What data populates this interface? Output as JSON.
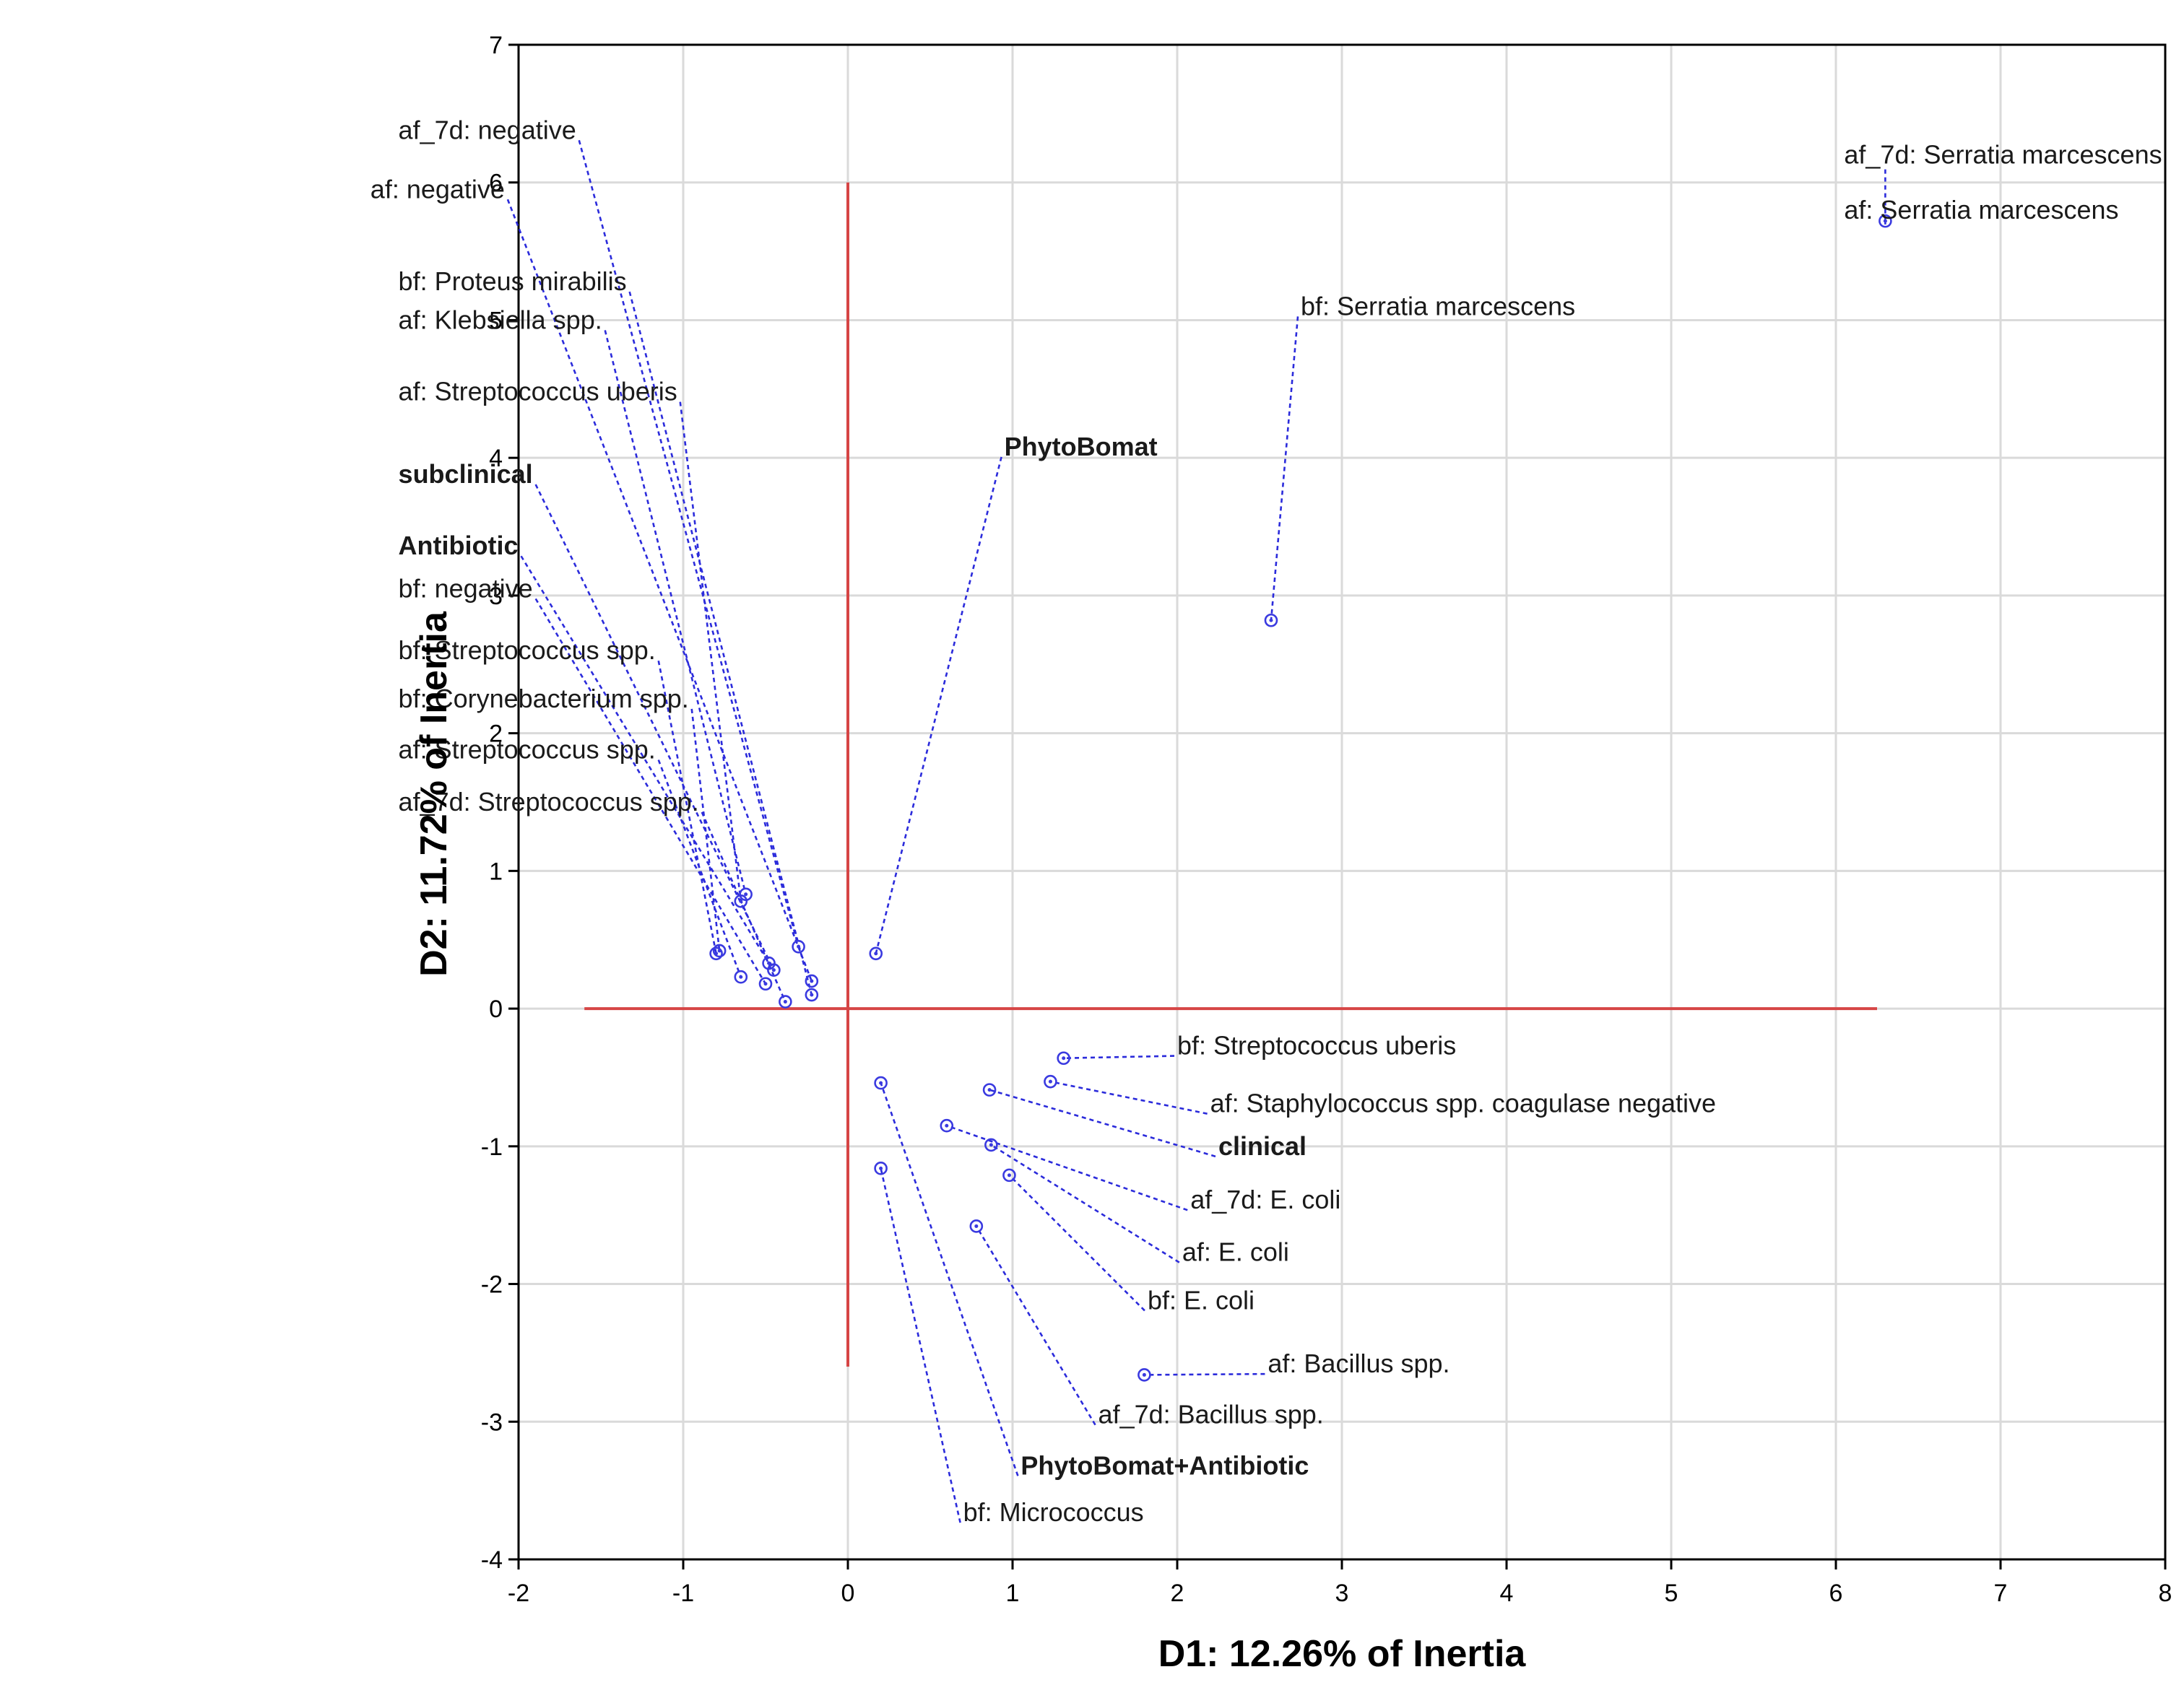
{
  "chart_data": {
    "type": "scatter",
    "title": "",
    "xlabel": "D1: 12.26% of Inertia",
    "ylabel": "D2: 11.72% of Inertia",
    "xlim": [
      -2,
      8
    ],
    "ylim": [
      -4,
      7
    ],
    "x_ticks": [
      -2,
      -1,
      0,
      1,
      2,
      3,
      4,
      5,
      6,
      7,
      8
    ],
    "y_ticks": [
      -4,
      -3,
      -2,
      -1,
      0,
      1,
      2,
      3,
      4,
      5,
      6,
      7
    ],
    "grid": true,
    "reference_lines": {
      "horizontal": {
        "y": 0,
        "x_from": -1.6,
        "x_to": 6.25,
        "color": "#d64545"
      },
      "vertical": {
        "x": 0,
        "y_from": -2.6,
        "y_to": 6.0,
        "color": "#d64545"
      }
    },
    "colors": {
      "category": "#1a1a1a",
      "status": "#1a1ae6",
      "treatment": "#8b1a1a",
      "point": "#3a3ae0"
    },
    "points": [
      {
        "label": "af_7d: negative",
        "group": "category",
        "x": -0.3,
        "y": 0.45,
        "label_x": -2.73,
        "label_y": 6.38
      },
      {
        "label": "af: negative",
        "group": "category",
        "x": -0.22,
        "y": 0.2,
        "label_x": -2.9,
        "label_y": 5.95
      },
      {
        "label": "bf: Proteus mirabilis",
        "group": "category",
        "x": -0.22,
        "y": 0.1,
        "label_x": -2.73,
        "label_y": 5.28
      },
      {
        "label": "af: Klebsiella spp.",
        "group": "category",
        "x": -0.62,
        "y": 0.83,
        "label_x": -2.73,
        "label_y": 5.0
      },
      {
        "label": "af: Streptococcus uberis",
        "group": "category",
        "x": -0.65,
        "y": 0.78,
        "label_x": -2.73,
        "label_y": 4.48
      },
      {
        "label": "subclinical",
        "group": "status",
        "x": -0.45,
        "y": 0.28,
        "label_x": -2.73,
        "label_y": 3.88
      },
      {
        "label": "Antibiotic",
        "group": "treatment",
        "x": -0.48,
        "y": 0.33,
        "label_x": -2.73,
        "label_y": 3.36
      },
      {
        "label": "bf: negative",
        "group": "category",
        "x": -0.5,
        "y": 0.18,
        "label_x": -2.73,
        "label_y": 3.05
      },
      {
        "label": "bf: Streptococcus spp.",
        "group": "category",
        "x": -0.8,
        "y": 0.4,
        "label_x": -2.73,
        "label_y": 2.6
      },
      {
        "label": "bf: Corynebacterium spp.",
        "group": "category",
        "x": -0.78,
        "y": 0.42,
        "label_x": -2.73,
        "label_y": 2.25
      },
      {
        "label": "af: Streptococcus spp.",
        "group": "category",
        "x": -0.65,
        "y": 0.23,
        "label_x": -2.73,
        "label_y": 1.88
      },
      {
        "label": "af_7d: Streptococcus spp.",
        "group": "category",
        "x": -0.38,
        "y": 0.05,
        "label_x": -2.73,
        "label_y": 1.5
      },
      {
        "label": "PhytoBomat",
        "group": "treatment",
        "x": 0.17,
        "y": 0.4,
        "label_x": 0.95,
        "label_y": 4.08
      },
      {
        "label": "bf: Serratia marcescens",
        "group": "category",
        "x": 2.57,
        "y": 2.82,
        "label_x": 2.75,
        "label_y": 5.1
      },
      {
        "label": "af_7d: Serratia marcescens",
        "group": "category",
        "x": 6.3,
        "y": 5.72,
        "label_x": 6.05,
        "label_y": 6.2
      },
      {
        "label": "af: Serratia marcescens",
        "group": "category",
        "x": 6.3,
        "y": 5.72,
        "label_x": 6.05,
        "label_y": 5.8
      },
      {
        "label": "bf: Streptococcus uberis",
        "group": "category",
        "x": 1.31,
        "y": -0.36,
        "label_x": 2.0,
        "label_y": -0.27
      },
      {
        "label": "af: Staphylococcus spp. coagulase negative",
        "group": "category",
        "x": 1.23,
        "y": -0.53,
        "label_x": 2.2,
        "label_y": -0.69
      },
      {
        "label": "clinical",
        "group": "status",
        "x": 0.86,
        "y": -0.59,
        "label_x": 2.25,
        "label_y": -1.0
      },
      {
        "label": "af_7d: E. coli",
        "group": "category",
        "x": 0.6,
        "y": -0.85,
        "label_x": 2.08,
        "label_y": -1.39
      },
      {
        "label": "af: E. coli",
        "group": "category",
        "x": 0.87,
        "y": -0.99,
        "label_x": 2.03,
        "label_y": -1.77
      },
      {
        "label": "bf: E. coli",
        "group": "category",
        "x": 0.98,
        "y": -1.21,
        "label_x": 1.82,
        "label_y": -2.12
      },
      {
        "label": "af: Bacillus spp.",
        "group": "category",
        "x": 1.8,
        "y": -2.66,
        "label_x": 2.55,
        "label_y": -2.58
      },
      {
        "label": "af_7d: Bacillus spp.",
        "group": "category",
        "x": 0.78,
        "y": -1.58,
        "label_x": 1.52,
        "label_y": -2.95
      },
      {
        "label": "PhytoBomat+Antibiotic",
        "group": "treatment",
        "x": 0.2,
        "y": -0.54,
        "label_x": 1.05,
        "label_y": -3.32
      },
      {
        "label": "bf: Micrococcus",
        "group": "category",
        "x": 0.2,
        "y": -1.16,
        "label_x": 0.7,
        "label_y": -3.66
      }
    ]
  }
}
